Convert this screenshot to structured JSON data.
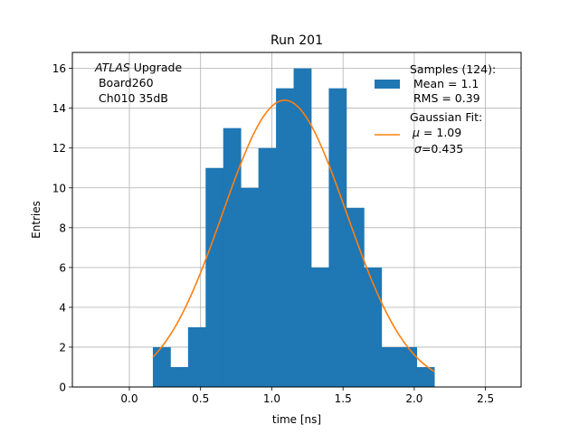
{
  "colors": {
    "bar": "#1f77b4",
    "fit": "#ff7f0e",
    "grid": "#b0b0b0",
    "axis": "#000000"
  },
  "chart_data": {
    "type": "bar",
    "title": "Run 201",
    "xlabel": "time [ns]",
    "ylabel": "Entries",
    "xlim": [
      -0.4,
      2.75
    ],
    "ylim": [
      0,
      16.8
    ],
    "xticks": [
      0.0,
      0.5,
      1.0,
      1.5,
      2.0,
      2.5
    ],
    "xtick_labels": [
      "0.0",
      "0.5",
      "1.0",
      "1.5",
      "2.0",
      "2.5"
    ],
    "yticks": [
      0,
      2,
      4,
      6,
      8,
      10,
      12,
      14,
      16
    ],
    "ytick_labels": [
      "0",
      "2",
      "4",
      "6",
      "8",
      "10",
      "12",
      "14",
      "16"
    ],
    "grid": true,
    "bin_edges": [
      0.165,
      0.2885,
      0.412,
      0.5355,
      0.659,
      0.7825,
      0.906,
      1.0295,
      1.153,
      1.2765,
      1.4,
      1.5235,
      1.647,
      1.7705,
      1.894,
      2.0175,
      2.141
    ],
    "counts": [
      2,
      1,
      3,
      11,
      13,
      10,
      12,
      15,
      16,
      6,
      15,
      9,
      6,
      2,
      2,
      1
    ],
    "fit": {
      "mu": 1.09,
      "sigma": 0.435,
      "amplitude": 14.4,
      "x_range": [
        0.165,
        2.141
      ]
    },
    "annotation": {
      "italic": "ATLAS",
      "line1_rest": " Upgrade",
      "line2": " Board260",
      "line3": " Ch010 35dB"
    },
    "legend": {
      "position": "top-right",
      "samples_title": "Samples (124):",
      "samples_mean": " Mean = 1.1",
      "samples_rms": " RMS = 0.39",
      "fit_title": "Gaussian Fit:",
      "fit_mu_symbol": "μ",
      "fit_mu_value": " = 1.09",
      "fit_sigma_symbol": "σ",
      "fit_sigma_value": "=0.435"
    }
  }
}
